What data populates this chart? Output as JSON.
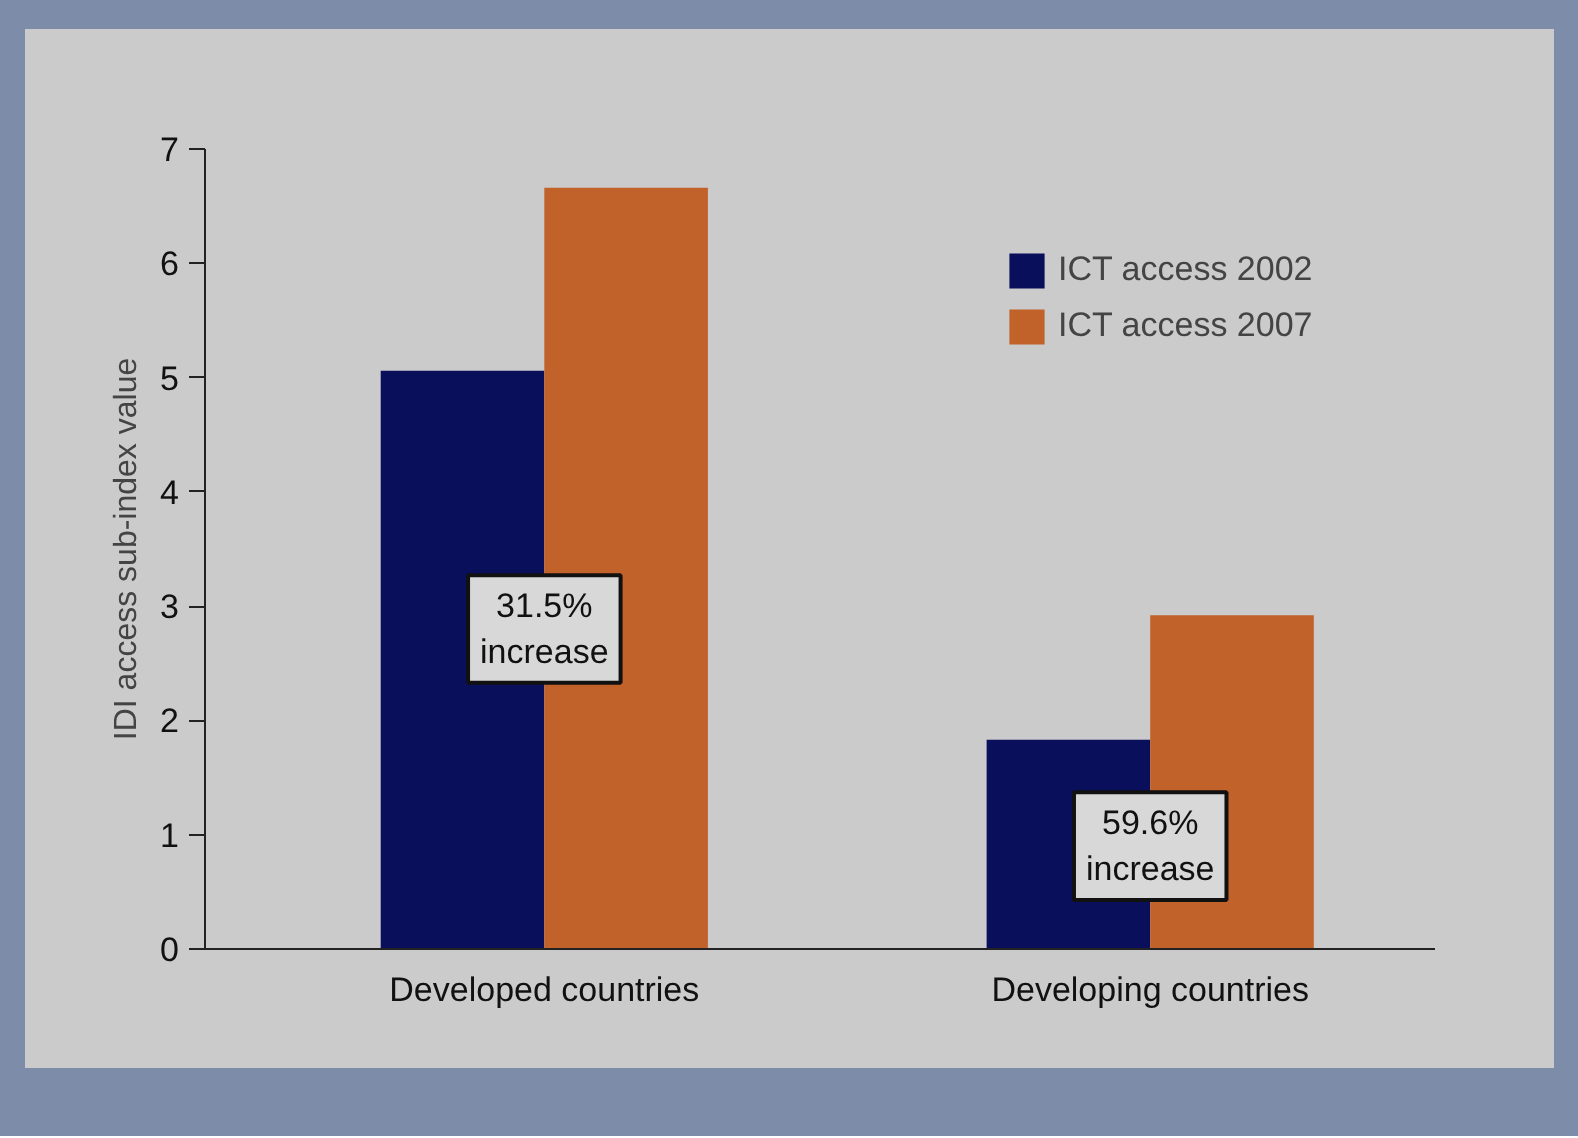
{
  "chart_data": {
    "type": "bar",
    "ylabel": "IDI access sub-index value",
    "categories": [
      "Developed countries",
      "Developing countries"
    ],
    "series": [
      {
        "name": "ICT access 2002",
        "color": "#0a0f5c",
        "values": [
          5.06,
          1.83
        ]
      },
      {
        "name": "ICT access 2007",
        "color": "#c0622a",
        "values": [
          6.66,
          2.92
        ]
      }
    ],
    "ylim": [
      0,
      7
    ],
    "yticks": [
      0,
      1,
      2,
      3,
      4,
      5,
      6,
      7
    ],
    "grid": false,
    "legend": "top right",
    "annotations": [
      {
        "text": "31.5%\nincrease",
        "x": "Developed countries",
        "y": 2.8
      },
      {
        "text": "59.6%\nincrease",
        "x": "Developing countries",
        "y": 0.9
      }
    ]
  }
}
